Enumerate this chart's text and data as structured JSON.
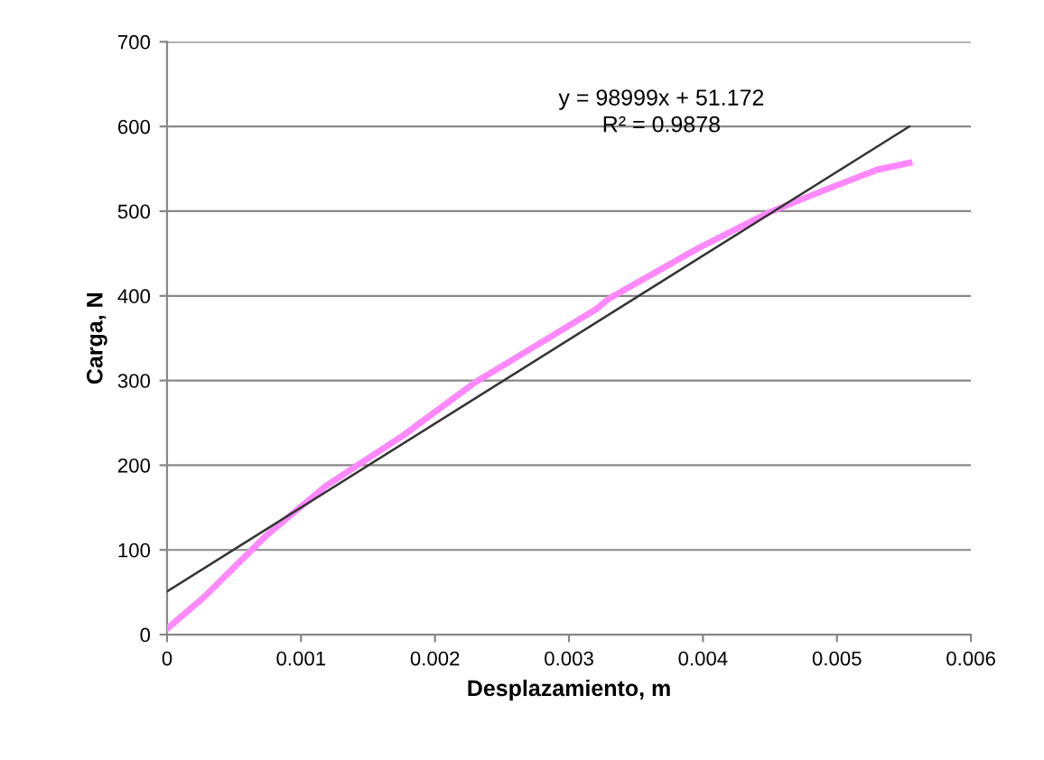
{
  "chart_data": {
    "type": "line",
    "xlabel": "Desplazamiento, m",
    "ylabel": "Carga, N",
    "xlim": [
      0,
      0.006
    ],
    "ylim": [
      0,
      700
    ],
    "xticks": [
      0,
      0.001,
      0.002,
      0.003,
      0.004,
      0.005,
      0.006
    ],
    "yticks": [
      0,
      100,
      200,
      300,
      400,
      500,
      600,
      700
    ],
    "grid": "y",
    "marker": "none",
    "line_style": "solid",
    "series": [
      {
        "color": "#ff88ff",
        "x": [
          0,
          0.00028,
          0.00074,
          0.00118,
          0.00176,
          0.0023,
          0.00275,
          0.0032,
          0.00329,
          0.00396,
          0.0045,
          0.00494,
          0.0053,
          0.00554
        ],
        "values": [
          7,
          45,
          117,
          175,
          235,
          298,
          341,
          384,
          396,
          456,
          499,
          527,
          549,
          557
        ]
      },
      {
        "color": "#333333",
        "x": [
          0,
          0.00554
        ],
        "values": [
          51,
          600
        ]
      }
    ],
    "annotations": [
      "y = 98999x + 51.172",
      "R² = 0.9878"
    ]
  }
}
